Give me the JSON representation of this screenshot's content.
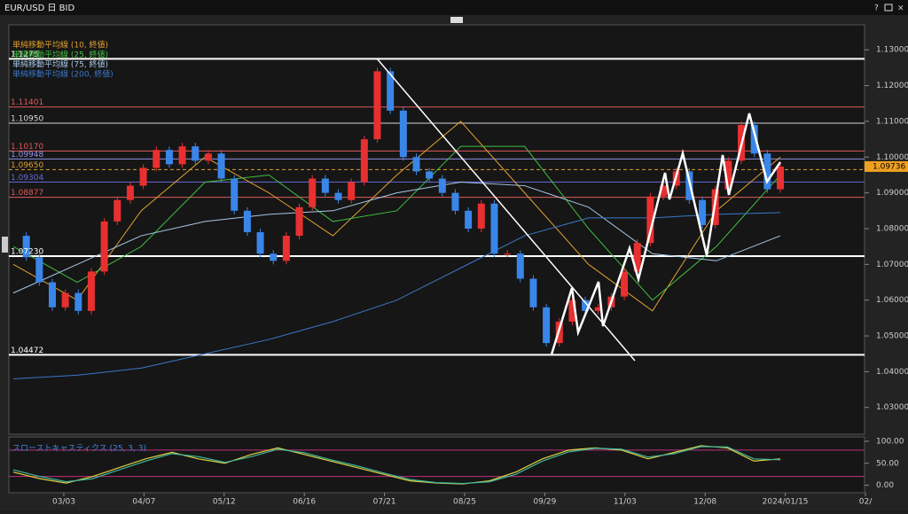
{
  "window": {
    "title": "EUR/USD 日 BID"
  },
  "chart_data": {
    "type": "candlestick",
    "closes": [
      1.078,
      1.072,
      1.065,
      1.058,
      1.062,
      1.057,
      1.068,
      1.082,
      1.088,
      1.092,
      1.097,
      1.102,
      1.098,
      1.103,
      1.099,
      1.101,
      1.094,
      1.085,
      1.079,
      1.073,
      1.071,
      1.078,
      1.086,
      1.094,
      1.09,
      1.088,
      1.093,
      1.105,
      1.124,
      1.113,
      1.1,
      1.096,
      1.094,
      1.09,
      1.085,
      1.08,
      1.087,
      1.073,
      1.073,
      1.066,
      1.058,
      1.048,
      1.054,
      1.06,
      1.057,
      1.058,
      1.061,
      1.068,
      1.076,
      1.089,
      1.092,
      1.096,
      1.088,
      1.081,
      1.091,
      1.099,
      1.109,
      1.101,
      1.091,
      1.09736
    ],
    "up_color": "#e83030",
    "down_color": "#3a86e8",
    "series": [
      {
        "name": "単純移動平均線 (10, 終値)",
        "color": "#e0a030",
        "values": [
          1.07,
          1.06,
          1.085,
          1.1,
          1.09,
          1.078,
          1.095,
          1.11,
          1.09,
          1.07,
          1.057,
          1.085,
          1.1
        ]
      },
      {
        "name": "単純移動平均線 (25, 終値)",
        "color": "#40c040",
        "values": [
          1.075,
          1.065,
          1.075,
          1.093,
          1.095,
          1.082,
          1.085,
          1.103,
          1.103,
          1.08,
          1.06,
          1.075,
          1.095
        ]
      },
      {
        "name": "単純移動平均線 (75, 終値)",
        "color": "#a8c8e8",
        "values": [
          1.062,
          1.07,
          1.078,
          1.082,
          1.084,
          1.085,
          1.09,
          1.093,
          1.092,
          1.086,
          1.073,
          1.071,
          1.078
        ]
      },
      {
        "name": "単純移動平均線 (200, 終値)",
        "color": "#3a78c8",
        "values": [
          1.038,
          1.039,
          1.041,
          1.045,
          1.049,
          1.054,
          1.06,
          1.069,
          1.078,
          1.083,
          1.083,
          1.084,
          1.0845
        ]
      }
    ],
    "ylim": [
      1.0225,
      1.1365
    ],
    "yticks": [
      {
        "value": 1.03,
        "label": "1.03000"
      },
      {
        "value": 1.04,
        "label": "1.04000"
      },
      {
        "value": 1.05,
        "label": "1.05000"
      },
      {
        "value": 1.06,
        "label": "1.06000"
      },
      {
        "value": 1.07,
        "label": "1.07000"
      },
      {
        "value": 1.08,
        "label": "1.08000"
      },
      {
        "value": 1.09,
        "label": "1.09000"
      },
      {
        "value": 1.1,
        "label": "1.10000"
      },
      {
        "value": 1.11,
        "label": "1.11000"
      },
      {
        "value": 1.12,
        "label": "1.12000"
      },
      {
        "value": 1.13,
        "label": "1.13000"
      }
    ],
    "xtick_labels": [
      "03/03",
      "04/07",
      "05/12",
      "06/16",
      "07/21",
      "08/25",
      "09/29",
      "11/03",
      "12/08",
      "2024/01/15",
      "02/"
    ],
    "levels": [
      {
        "value": 1.1275,
        "color": "#ffffff"
      },
      {
        "value": 1.11401,
        "color": "#e05a5a"
      },
      {
        "value": 1.1095,
        "label": "1.10950",
        "color": "#d8d8d8"
      },
      {
        "value": 1.1017,
        "label": "1.10170",
        "color": "#e05a5a"
      },
      {
        "value": 1.09948,
        "color": "#9090e8"
      },
      {
        "value": 1.0965,
        "label": "1.09650",
        "color": "#e0a030"
      },
      {
        "value": 1.09304,
        "color": "#6a6ad8"
      },
      {
        "value": 1.08877,
        "color": "#e05a5a"
      },
      {
        "value": 1.0723,
        "label": "1.07230",
        "color": "#ffffff"
      },
      {
        "value": 1.04472,
        "color": "#ffffff"
      }
    ],
    "current_price": 1.09736,
    "stochastic": {
      "name": "スローストキャスティクス (25, 3, 3)",
      "ylim": [
        -17,
        110
      ],
      "yticks": [
        {
          "value": 100,
          "label": "100.00"
        },
        {
          "value": 50,
          "label": "50.00"
        },
        {
          "value": 0,
          "label": "0.00"
        }
      ],
      "bands": [
        80,
        20
      ],
      "series": [
        {
          "color": "#e0d040",
          "values": [
            30,
            15,
            5,
            20,
            40,
            60,
            75,
            60,
            50,
            70,
            85,
            70,
            55,
            40,
            25,
            10,
            5,
            3,
            10,
            30,
            60,
            80,
            85,
            80,
            60,
            75,
            90,
            85,
            55,
            60
          ]
        },
        {
          "color": "#40b8a0",
          "values": [
            35,
            20,
            8,
            15,
            35,
            55,
            72,
            65,
            52,
            65,
            82,
            74,
            58,
            44,
            28,
            13,
            6,
            4,
            8,
            25,
            55,
            76,
            84,
            82,
            64,
            72,
            88,
            87,
            60,
            58
          ]
        }
      ]
    }
  }
}
